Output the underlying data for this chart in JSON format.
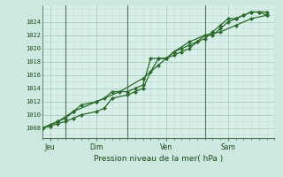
{
  "xlabel": "Pression niveau de la mer( hPa )",
  "bg_color": "#cce8e0",
  "plot_bg_color": "#d8eee8",
  "grid_major_color": "#aaccbb",
  "grid_minor_color": "#c4ddd6",
  "line_color": "#2a6b2a",
  "vline_color": "#4a7a5a",
  "ylim": [
    1006.5,
    1026.5
  ],
  "yticks_major": [
    1008,
    1010,
    1012,
    1014,
    1016,
    1018,
    1020,
    1022,
    1024
  ],
  "yticks_minor": [
    1007,
    1009,
    1011,
    1013,
    1015,
    1017,
    1019,
    1021,
    1023,
    1025
  ],
  "day_labels": [
    "Jeu",
    "Dim",
    "Ven",
    "Sam"
  ],
  "day_positions": [
    0.5,
    3.5,
    8.0,
    12.0
  ],
  "vline_positions": [
    1.5,
    5.5,
    10.5
  ],
  "xmin": 0,
  "xmax": 15,
  "line1_x": [
    0,
    0.5,
    1.0,
    1.5,
    2.0,
    2.5,
    3.5,
    4.0,
    4.5,
    5.5,
    6.0,
    6.5,
    7.0,
    7.5,
    8.0,
    8.5,
    9.0,
    9.5,
    10.0,
    10.5,
    11.0,
    11.5,
    12.0,
    12.5,
    13.0,
    13.5,
    14.0,
    14.5
  ],
  "line1_y": [
    1008.0,
    1008.3,
    1008.7,
    1009.0,
    1009.5,
    1010.0,
    1010.5,
    1011.0,
    1012.5,
    1013.0,
    1013.5,
    1014.0,
    1016.5,
    1018.5,
    1018.5,
    1019.0,
    1019.5,
    1020.0,
    1021.0,
    1022.0,
    1022.0,
    1023.0,
    1024.0,
    1024.5,
    1025.0,
    1025.5,
    1025.5,
    1025.5
  ],
  "line2_x": [
    0,
    0.5,
    1.0,
    1.5,
    2.0,
    2.5,
    3.5,
    4.0,
    4.5,
    5.5,
    6.0,
    6.5,
    7.0,
    7.5,
    8.0,
    8.5,
    9.0,
    9.5,
    10.0,
    10.5,
    11.0,
    11.5,
    12.0,
    12.5,
    13.0,
    13.5,
    14.0,
    14.5
  ],
  "line2_y": [
    1008.0,
    1008.5,
    1009.0,
    1009.5,
    1010.5,
    1011.5,
    1012.0,
    1012.5,
    1013.5,
    1013.5,
    1014.0,
    1014.5,
    1018.5,
    1018.5,
    1018.5,
    1019.5,
    1020.0,
    1020.5,
    1021.0,
    1021.5,
    1022.5,
    1023.5,
    1024.5,
    1024.5,
    1025.0,
    1025.5,
    1025.5,
    1025.0
  ],
  "line3_x": [
    0,
    1.0,
    2.0,
    3.5,
    5.0,
    6.5,
    7.5,
    8.5,
    9.5,
    10.5,
    11.5,
    12.5,
    13.5,
    14.5
  ],
  "line3_y": [
    1008.0,
    1009.0,
    1010.5,
    1012.0,
    1013.5,
    1015.5,
    1017.5,
    1019.5,
    1021.0,
    1022.0,
    1022.5,
    1023.5,
    1024.5,
    1025.0
  ]
}
